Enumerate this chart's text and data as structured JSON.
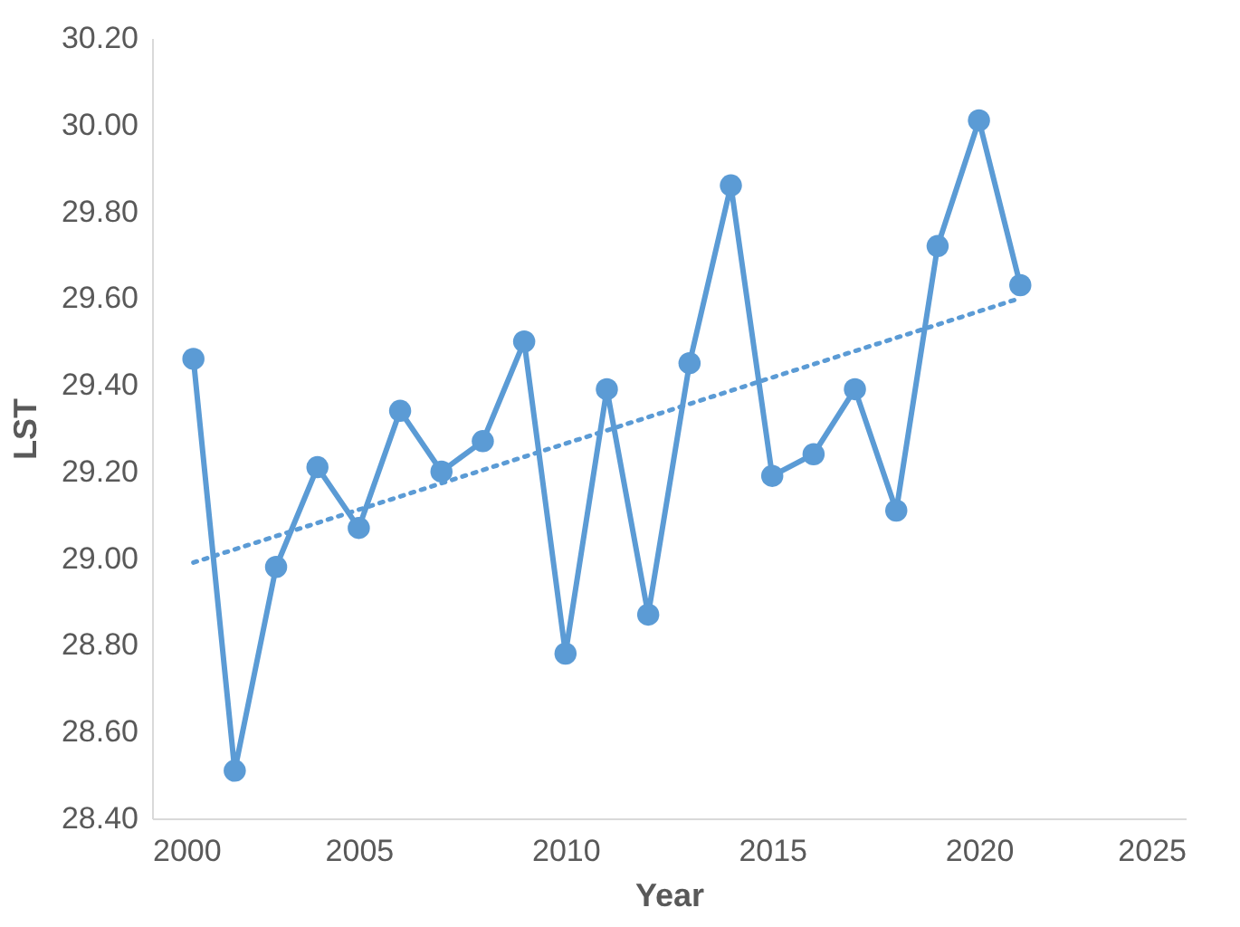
{
  "chart_data": {
    "type": "line",
    "xlabel": "Year",
    "ylabel": "LST",
    "x": [
      2001,
      2002,
      2003,
      2004,
      2005,
      2006,
      2007,
      2008,
      2009,
      2010,
      2011,
      2012,
      2013,
      2014,
      2015,
      2016,
      2017,
      2018,
      2019,
      2020,
      2021
    ],
    "series": [
      {
        "color": "#5b9bd5",
        "marker": "circle",
        "line_style": "solid",
        "values": [
          29.46,
          28.51,
          28.98,
          29.21,
          29.07,
          29.34,
          29.2,
          29.27,
          29.5,
          28.78,
          29.39,
          28.87,
          29.45,
          29.86,
          29.19,
          29.24,
          29.39,
          29.11,
          29.72,
          30.01,
          29.63
        ]
      },
      {
        "type": "line",
        "color": "#5b9bd5",
        "marker": "none",
        "line_style": "dotted",
        "x": [
          2001,
          2021
        ],
        "values": [
          28.99,
          29.6
        ]
      }
    ],
    "xlim": [
      2000,
      2025
    ],
    "xticks": [
      2000,
      2005,
      2010,
      2015,
      2020,
      2025
    ],
    "ylim": [
      28.4,
      30.2
    ],
    "yticks": [
      {
        "value": 28.4,
        "label": "28.40"
      },
      {
        "value": 28.6,
        "label": "28.60"
      },
      {
        "value": 28.8,
        "label": "28.80"
      },
      {
        "value": 29.0,
        "label": "29.00"
      },
      {
        "value": 29.2,
        "label": "29.20"
      },
      {
        "value": 29.4,
        "label": "29.40"
      },
      {
        "value": 29.6,
        "label": "29.60"
      },
      {
        "value": 29.8,
        "label": "29.80"
      },
      {
        "value": 30.0,
        "label": "30.00"
      },
      {
        "value": 30.2,
        "label": "30.20"
      }
    ],
    "grid": false
  }
}
